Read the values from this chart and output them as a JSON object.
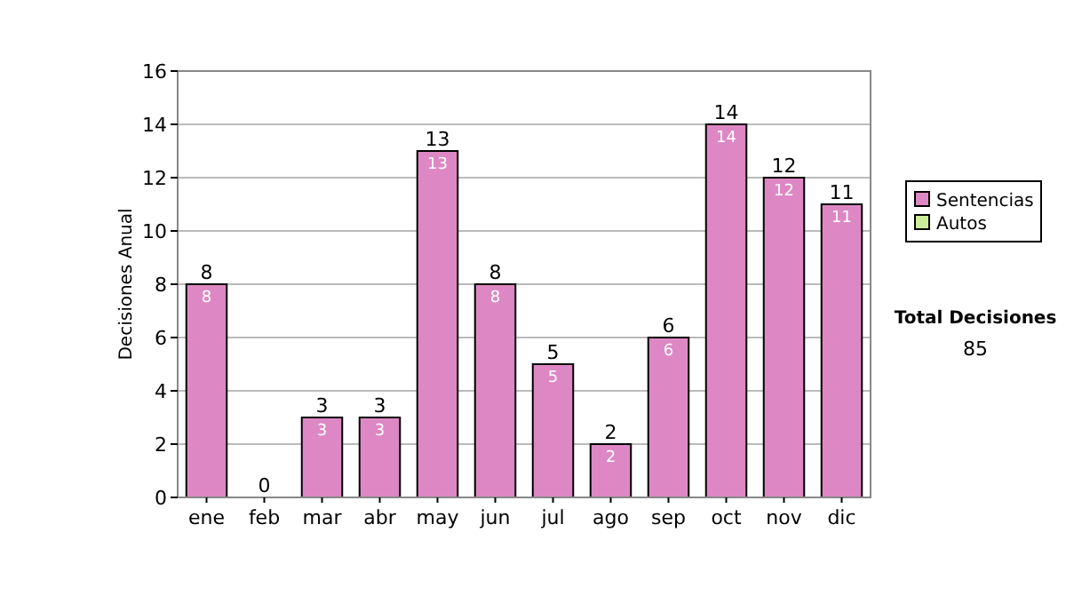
{
  "chart_data": {
    "type": "bar",
    "ylabel": "Decisiones Anual",
    "categories": [
      "ene",
      "feb",
      "mar",
      "abr",
      "may",
      "jun",
      "jul",
      "ago",
      "sep",
      "oct",
      "nov",
      "dic"
    ],
    "stacked": true,
    "series": [
      {
        "name": "Sentencias",
        "color": "#dd88c4",
        "values": [
          8,
          0,
          3,
          3,
          13,
          8,
          5,
          2,
          6,
          14,
          12,
          11
        ],
        "value_labels": [
          "8",
          null,
          "3",
          "3",
          "13",
          "8",
          "5",
          "2",
          "6",
          "14",
          "12",
          "11"
        ]
      },
      {
        "name": "Autos",
        "color": "#ccee99",
        "values": [
          0,
          0,
          0,
          0,
          0,
          0,
          0,
          0,
          0,
          0,
          0,
          0
        ]
      }
    ],
    "totals": [
      "8",
      "0",
      "3",
      "3",
      "13",
      "8",
      "5",
      "2",
      "6",
      "14",
      "12",
      "11"
    ],
    "ylim": [
      0,
      16
    ],
    "yticks": [
      0,
      2,
      4,
      6,
      8,
      10,
      12,
      14,
      16
    ],
    "grid": "y",
    "legend": "right",
    "annotations": [
      "Total Decisiones",
      "85"
    ]
  }
}
